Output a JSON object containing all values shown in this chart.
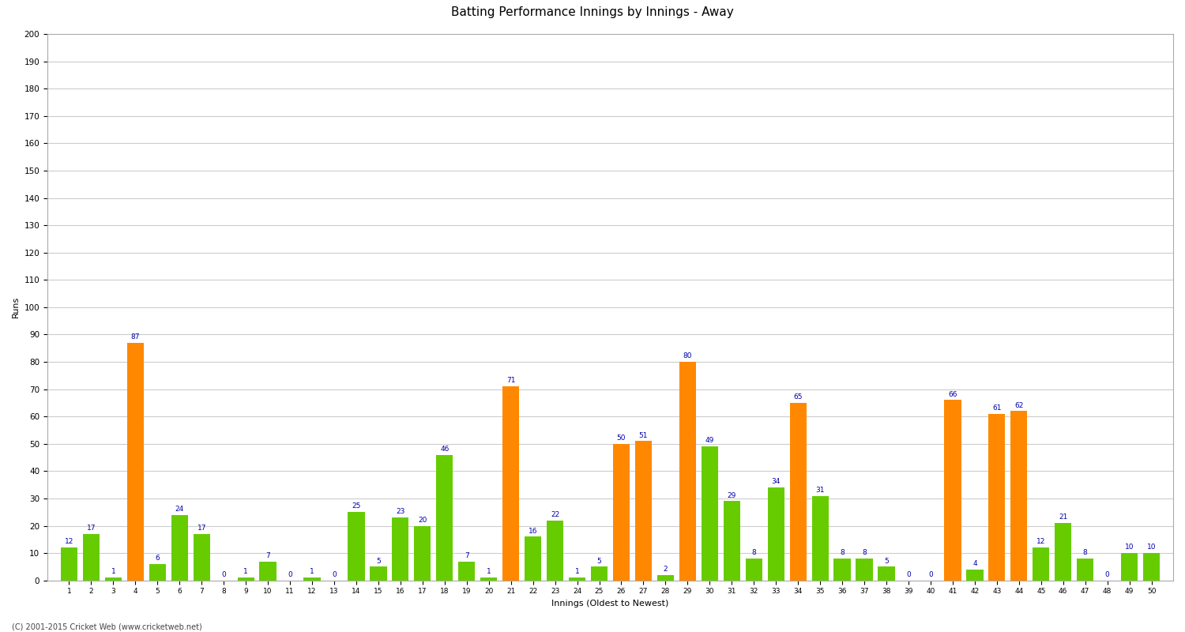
{
  "title": "Batting Performance Innings by Innings - Away",
  "xlabel": "Innings (Oldest to Newest)",
  "ylabel": "Runs",
  "ylim": [
    0,
    200
  ],
  "yticks": [
    0,
    10,
    20,
    30,
    40,
    50,
    60,
    70,
    80,
    90,
    100,
    110,
    120,
    130,
    140,
    150,
    160,
    170,
    180,
    190,
    200
  ],
  "background_color": "#ffffff",
  "grid_color": "#cccccc",
  "bar_color_orange": "#ff8800",
  "bar_color_green": "#66cc00",
  "label_color": "#0000aa",
  "footer": "(C) 2001-2015 Cricket Web (www.cricketweb.net)",
  "label_fontsize": 6.5,
  "title_fontsize": 11,
  "axis_label_fontsize": 8,
  "tick_fontsize": 7.5,
  "footer_fontsize": 7,
  "matches": [
    {
      "match": 1,
      "label1": "1",
      "label2": "2",
      "v1": 12,
      "c1": "green",
      "v2": 17,
      "c2": "green"
    },
    {
      "match": 2,
      "label1": "3",
      "label2": "4",
      "v1": 1,
      "c1": "green",
      "v2": 87,
      "c2": "orange"
    },
    {
      "match": 3,
      "label1": "5",
      "label2": "6",
      "v1": 6,
      "c1": "green",
      "v2": 24,
      "c2": "green"
    },
    {
      "match": 4,
      "label1": "7",
      "label2": "8",
      "v1": 17,
      "c1": "green",
      "v2": 0,
      "c2": "green"
    },
    {
      "match": 5,
      "label1": "9",
      "label2": "10",
      "v1": 1,
      "c1": "green",
      "v2": 7,
      "c2": "green"
    },
    {
      "match": 6,
      "label1": "11",
      "label2": "12",
      "v1": 0,
      "c1": "green",
      "v2": 1,
      "c2": "green"
    },
    {
      "match": 7,
      "label1": "13",
      "label2": "14",
      "v1": 0,
      "c1": "green",
      "v2": 25,
      "c2": "green"
    },
    {
      "match": 8,
      "label1": "15",
      "label2": "16",
      "v1": 5,
      "c1": "green",
      "v2": 23,
      "c2": "green"
    },
    {
      "match": 9,
      "label1": "17",
      "label2": "18",
      "v1": 20,
      "c1": "green",
      "v2": 46,
      "c2": "green"
    },
    {
      "match": 10,
      "label1": "19",
      "label2": "20",
      "v1": 7,
      "c1": "green",
      "v2": 1,
      "c2": "green"
    },
    {
      "match": 11,
      "label1": "21",
      "label2": "22",
      "v1": 71,
      "c1": "orange",
      "v2": 16,
      "c2": "green"
    },
    {
      "match": 12,
      "label1": "23",
      "label2": "24",
      "v1": 22,
      "c1": "green",
      "v2": 1,
      "c2": "green"
    },
    {
      "match": 13,
      "label1": "25",
      "label2": "26",
      "v1": 5,
      "c1": "green",
      "v2": 50,
      "c2": "orange"
    },
    {
      "match": 14,
      "label1": "27",
      "label2": "28",
      "v1": 51,
      "c1": "orange",
      "v2": 2,
      "c2": "green"
    },
    {
      "match": 15,
      "label1": "29",
      "label2": "30",
      "v1": 80,
      "c1": "orange",
      "v2": 49,
      "c2": "green"
    },
    {
      "match": 16,
      "label1": "31",
      "label2": "32",
      "v1": 29,
      "c1": "green",
      "v2": 8,
      "c2": "green"
    },
    {
      "match": 17,
      "label1": "33",
      "label2": "34",
      "v1": 34,
      "c1": "green",
      "v2": 65,
      "c2": "orange"
    },
    {
      "match": 18,
      "label1": "35",
      "label2": "36",
      "v1": 31,
      "c1": "green",
      "v2": 8,
      "c2": "green"
    },
    {
      "match": 19,
      "label1": "37",
      "label2": "38",
      "v1": 8,
      "c1": "green",
      "v2": 5,
      "c2": "green"
    },
    {
      "match": 20,
      "label1": "39",
      "label2": "40",
      "v1": 0,
      "c1": "green",
      "v2": 0,
      "c2": "green"
    },
    {
      "match": 21,
      "label1": "41",
      "label2": "42",
      "v1": 66,
      "c1": "orange",
      "v2": 4,
      "c2": "green"
    },
    {
      "match": 22,
      "label1": "43",
      "label2": "44",
      "v1": 61,
      "c1": "orange",
      "v2": 62,
      "c2": "orange"
    },
    {
      "match": 23,
      "label1": "45",
      "label2": "46",
      "v1": 12,
      "c1": "green",
      "v2": 21,
      "c2": "green"
    },
    {
      "match": 24,
      "label1": "47",
      "label2": "48",
      "v1": 8,
      "c1": "green",
      "v2": 0,
      "c2": "green"
    },
    {
      "match": 25,
      "label1": "49",
      "label2": "50",
      "v1": 10,
      "c1": "green",
      "v2": 10,
      "c2": "green"
    }
  ]
}
